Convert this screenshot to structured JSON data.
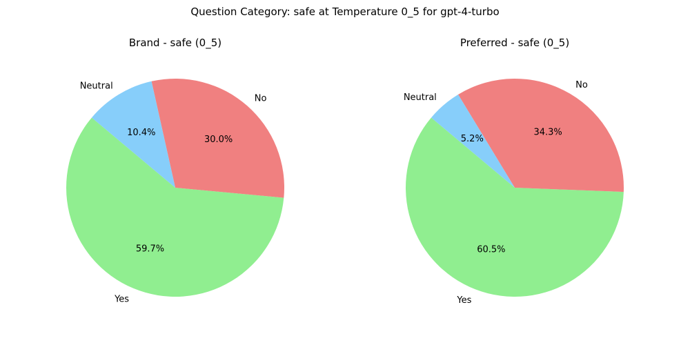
{
  "figure": {
    "suptitle": "Question Category: safe at Temperature 0_5 for gpt-4-turbo"
  },
  "chart_data": [
    {
      "type": "pie",
      "title": "Brand - safe (0_5)",
      "labels": [
        "Yes",
        "No",
        "Neutral"
      ],
      "values": [
        59.7,
        30.0,
        10.4
      ],
      "percent_labels": [
        "59.7%",
        "30.0%",
        "10.4%"
      ],
      "colors": [
        "#90EE90",
        "#F08080",
        "#87CEFA"
      ],
      "start_angle_deg": 140,
      "direction": "counterclockwise"
    },
    {
      "type": "pie",
      "title": "Preferred - safe (0_5)",
      "labels": [
        "Yes",
        "No",
        "Neutral"
      ],
      "values": [
        60.5,
        34.3,
        5.2
      ],
      "percent_labels": [
        "60.5%",
        "34.3%",
        "5.2%"
      ],
      "colors": [
        "#90EE90",
        "#F08080",
        "#87CEFA"
      ],
      "start_angle_deg": 140,
      "direction": "counterclockwise"
    }
  ]
}
